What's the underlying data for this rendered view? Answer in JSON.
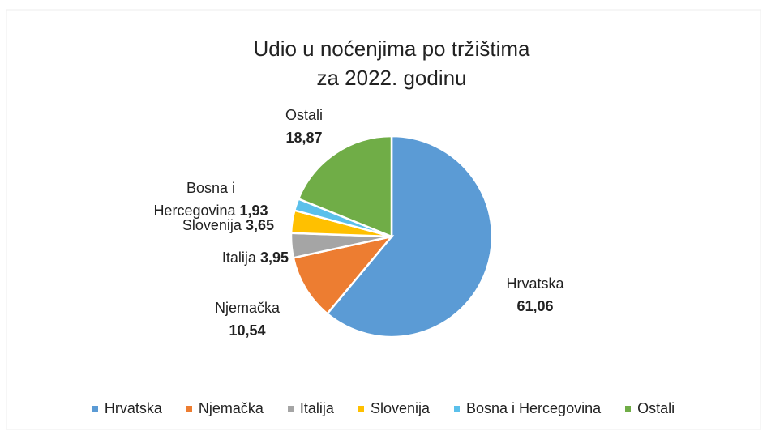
{
  "chart_data": {
    "type": "pie",
    "title": "Udio u noćenjima po tržištima",
    "subtitle": "za 2022. godinu",
    "categories": [
      "Hrvatska",
      "Njemačka",
      "Italija",
      "Slovenija",
      "Bosna i Hercegovina",
      "Ostali"
    ],
    "values": [
      61.06,
      10.54,
      3.95,
      3.65,
      1.93,
      18.87
    ],
    "value_labels": [
      "61,06",
      "10,54",
      "3,95",
      "3,65",
      "1,93",
      "18,87"
    ],
    "colors": [
      "#5b9bd5",
      "#ed7d31",
      "#a5a5a5",
      "#ffc000",
      "#5bc0eb",
      "#70ad47"
    ],
    "legend": "bottom"
  }
}
